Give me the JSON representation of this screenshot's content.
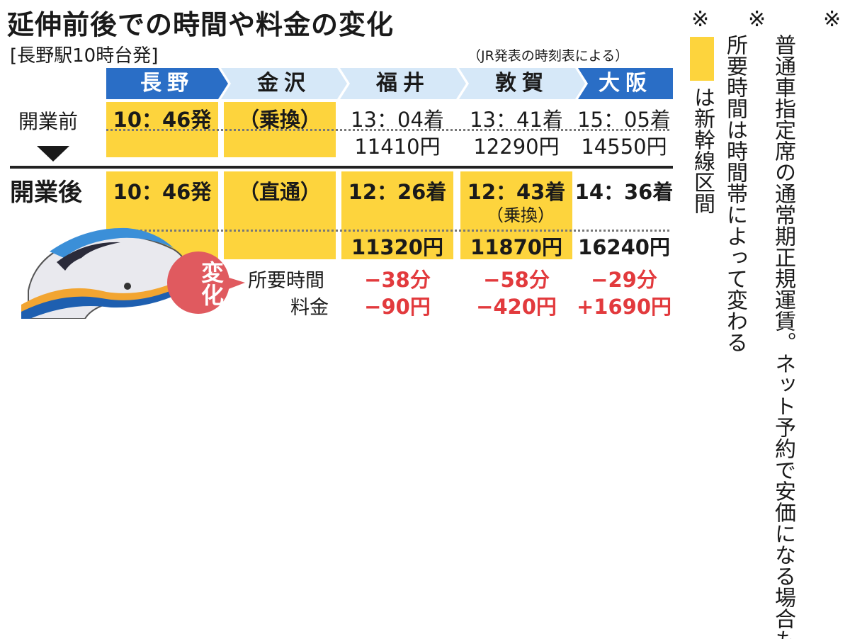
{
  "title": "延伸前後での時間や料金の変化",
  "subtitle": "[長野駅10時台発]",
  "source_note": "（JR発表の時刻表による）",
  "stations": [
    "長野",
    "金沢",
    "福井",
    "敦賀",
    "大阪"
  ],
  "before": {
    "label": "開業前",
    "times": [
      "10：46発",
      "（乗換）",
      "13：04着",
      "13：41着",
      "15：05着"
    ],
    "fares": [
      "",
      "",
      "11410円",
      "12290円",
      "14550円"
    ]
  },
  "after": {
    "label": "開業後",
    "times": [
      "10：46発",
      "（直通）",
      "12：26着",
      "12：43着",
      "14：36着"
    ],
    "transfer_note": "（乗換）",
    "fares": [
      "",
      "",
      "11320円",
      "11870円",
      "16240円"
    ]
  },
  "change": {
    "badge": "変化",
    "time_label": "所要時間",
    "fare_label": "料金",
    "time_diffs": [
      "−38分",
      "−58分",
      "−29分"
    ],
    "fare_diffs": [
      "−90円",
      "−420円",
      "+1690円"
    ]
  },
  "notes": {
    "symbol": "※",
    "shinkansen": "は新幹線区間",
    "time_varies": "所要時間は時間帯によって変わる",
    "fare_note": "普通車指定席の通常期正規運賃。ネット予約で安価になる場合も"
  },
  "colors": {
    "header_blue": "#2a6ec6",
    "header_light": "#d6e8f8",
    "highlight_yellow": "#fdd43d",
    "change_red": "#e23a3d"
  }
}
